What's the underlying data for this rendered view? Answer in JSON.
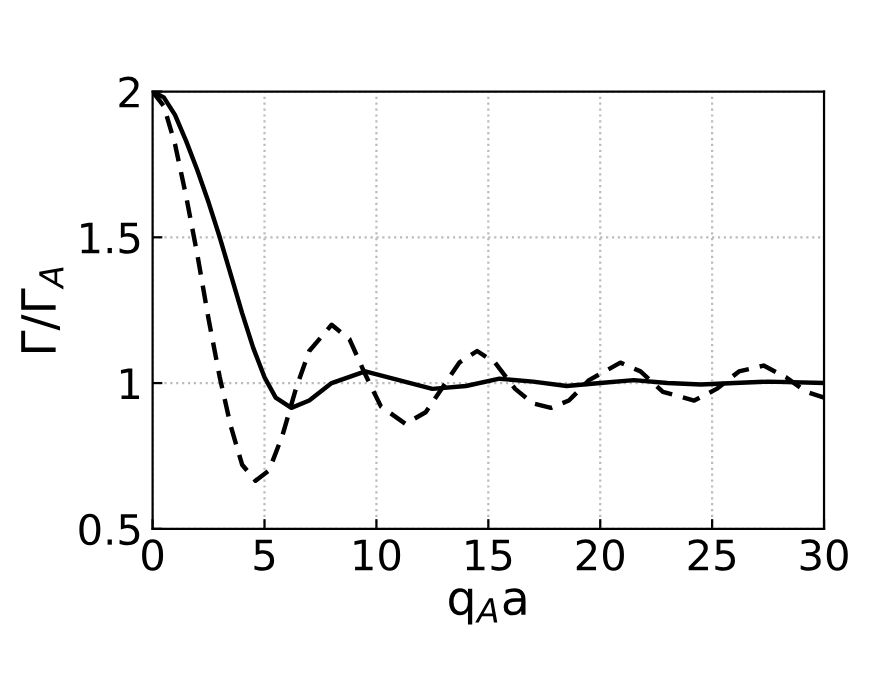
{
  "chart_data": {
    "type": "line",
    "xlabel": "q$_{A}$a",
    "ylabel": "Γ/Γ$_{A}$",
    "xlim": [
      0,
      30
    ],
    "ylim": [
      0.5,
      2
    ],
    "xticks": [
      0,
      5,
      10,
      15,
      20,
      25,
      30
    ],
    "yticks": [
      0.5,
      1,
      1.5,
      2
    ],
    "grid": true,
    "marker": "none",
    "series": [
      {
        "color": "#000000",
        "line_style": "solid",
        "x": [
          0,
          0.5,
          1,
          1.5,
          2,
          2.5,
          3,
          3.5,
          4,
          4.5,
          5,
          5.5,
          6.2,
          7,
          8,
          9.5,
          11,
          12.5,
          14,
          15.5,
          17,
          18.5,
          20,
          21.5,
          23,
          24.5,
          26,
          27.5,
          30
        ],
        "values": [
          2.0,
          1.98,
          1.92,
          1.83,
          1.73,
          1.62,
          1.5,
          1.37,
          1.24,
          1.12,
          1.02,
          0.95,
          0.915,
          0.94,
          1.0,
          1.04,
          1.01,
          0.98,
          0.99,
          1.015,
          1.005,
          0.99,
          1.0,
          1.01,
          1.0,
          0.995,
          1.0,
          1.005,
          1.0
        ]
      },
      {
        "color": "#000000",
        "line_style": "dashed",
        "x": [
          0,
          0.5,
          1,
          1.5,
          2,
          2.5,
          3,
          3.5,
          4,
          4.6,
          5.2,
          5.8,
          6.4,
          7,
          8,
          8.8,
          9.5,
          10.2,
          11.3,
          12.2,
          13,
          13.7,
          14.5,
          15.3,
          16.2,
          17,
          17.8,
          18.6,
          19.5,
          20.9,
          21.8,
          22.8,
          24.2,
          25.2,
          26.2,
          27.3,
          28.3,
          29.2,
          30
        ],
        "values": [
          2.0,
          1.95,
          1.82,
          1.64,
          1.44,
          1.22,
          1.02,
          0.85,
          0.72,
          0.665,
          0.7,
          0.82,
          0.98,
          1.11,
          1.2,
          1.15,
          1.03,
          0.92,
          0.86,
          0.9,
          0.99,
          1.07,
          1.11,
          1.07,
          0.98,
          0.93,
          0.915,
          0.94,
          1.01,
          1.07,
          1.04,
          0.97,
          0.94,
          0.98,
          1.04,
          1.06,
          1.02,
          0.97,
          0.95
        ]
      }
    ]
  }
}
